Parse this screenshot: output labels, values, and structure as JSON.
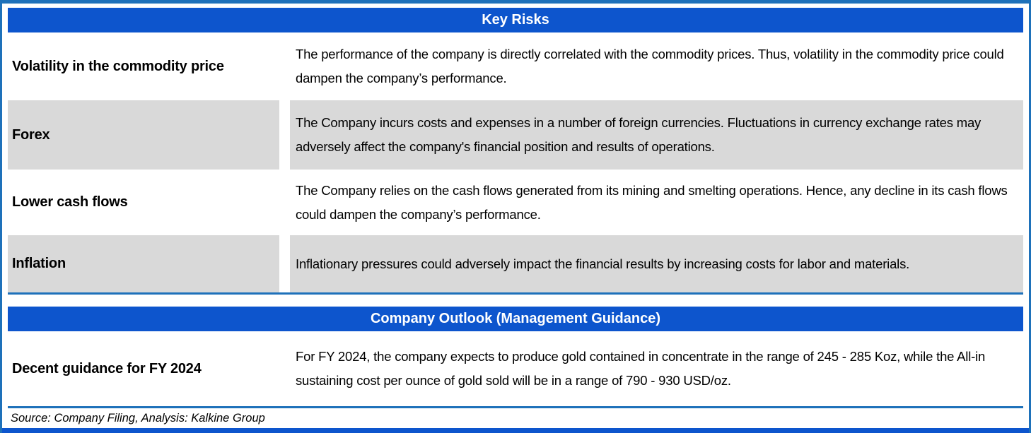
{
  "key_risks": {
    "title": "Key Risks",
    "rows": [
      {
        "label": "Volatility in the commodity price",
        "description": "The performance of the company is directly correlated with the commodity prices. Thus, volatility in the commodity price could dampen the company’s performance."
      },
      {
        "label": "Forex",
        "description": "The Company incurs costs and expenses in a number of foreign currencies. Fluctuations in currency exchange rates may adversely affect the company's financial position and results of operations."
      },
      {
        "label": "Lower cash flows",
        "description": "The Company relies on the cash flows generated from its mining and smelting operations. Hence, any decline in its cash flows could dampen the company’s performance."
      },
      {
        "label": "Inflation",
        "description": "Inflationary pressures could adversely impact the financial results by increasing costs for labor and materials."
      }
    ]
  },
  "outlook": {
    "title": "Company Outlook (Management Guidance)",
    "rows": [
      {
        "label": "Decent guidance for FY 2024",
        "description": "For FY 2024, the company expects to produce gold contained in concentrate in the range of 245 - 285 Koz, while the All-in sustaining cost per ounce of gold sold will be in a range of 790 - 930 USD/oz."
      }
    ]
  },
  "footer": {
    "source": "Source: Company Filing, Analysis: Kalkine Group"
  },
  "colors": {
    "header_blue": "#0d55cd",
    "border_blue": "#1e71ba",
    "row_shade_gray": "#d9d9d9"
  }
}
